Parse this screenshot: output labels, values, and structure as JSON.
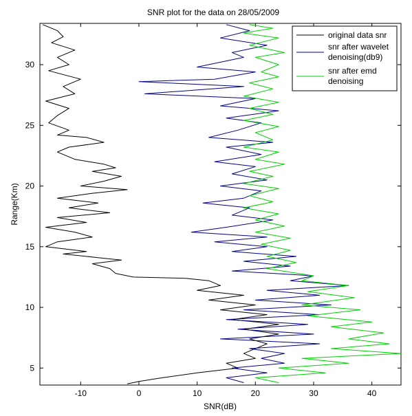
{
  "chart_data": {
    "type": "line",
    "title": "SNR plot for the data on 28/05/2009",
    "xlabel": "SNR(dB)",
    "ylabel": "Range(Km)",
    "xlim": [
      -17,
      45
    ],
    "ylim": [
      3.6,
      33.4
    ],
    "xticks": [
      -10,
      0,
      10,
      20,
      30,
      40
    ],
    "yticks": [
      5,
      10,
      15,
      20,
      25,
      30
    ],
    "grid": false,
    "legend_position": "top-right",
    "series": [
      {
        "name": "original data snr",
        "color": "#000000",
        "points": [
          [
            -16.5,
            33.3
          ],
          [
            -14,
            32.8
          ],
          [
            -13,
            32.3
          ],
          [
            -15,
            31.8
          ],
          [
            -11,
            31.2
          ],
          [
            -14,
            30.6
          ],
          [
            -12,
            30.0
          ],
          [
            -15.5,
            29.5
          ],
          [
            -10,
            28.8
          ],
          [
            -13,
            28.2
          ],
          [
            -11,
            27.6
          ],
          [
            -16,
            27.0
          ],
          [
            -12,
            26.4
          ],
          [
            -14,
            25.8
          ],
          [
            -15.5,
            25.2
          ],
          [
            -12,
            24.6
          ],
          [
            -14,
            24.2
          ],
          [
            -9,
            24.0
          ],
          [
            -6,
            23.6
          ],
          [
            -12,
            23.2
          ],
          [
            -14,
            22.8
          ],
          [
            -11,
            22.2
          ],
          [
            -6,
            21.8
          ],
          [
            -4,
            21.5
          ],
          [
            -8,
            21.2
          ],
          [
            -3,
            20.8
          ],
          [
            -6,
            20.4
          ],
          [
            -10,
            20.0
          ],
          [
            -2,
            19.7
          ],
          [
            -8,
            19.4
          ],
          [
            -14,
            19.0
          ],
          [
            -7,
            18.6
          ],
          [
            -12,
            18.2
          ],
          [
            -5,
            17.8
          ],
          [
            -14,
            17.4
          ],
          [
            -9,
            17.0
          ],
          [
            -16,
            16.6
          ],
          [
            -11,
            16.2
          ],
          [
            -8,
            15.8
          ],
          [
            -14,
            15.4
          ],
          [
            -16,
            15.0
          ],
          [
            -9,
            14.6
          ],
          [
            -13,
            14.4
          ],
          [
            -7,
            14.1
          ],
          [
            -3,
            13.9
          ],
          [
            -8,
            13.6
          ],
          [
            -5,
            13.2
          ],
          [
            -4,
            12.8
          ],
          [
            -1,
            12.5
          ],
          [
            8,
            12.4
          ],
          [
            12,
            12.2
          ],
          [
            14,
            11.8
          ],
          [
            10,
            11.4
          ],
          [
            18,
            11.0
          ],
          [
            12,
            10.6
          ],
          [
            20,
            10.2
          ],
          [
            14,
            9.8
          ],
          [
            22,
            9.4
          ],
          [
            16,
            9.0
          ],
          [
            24,
            8.6
          ],
          [
            18,
            8.2
          ],
          [
            24,
            7.8
          ],
          [
            19,
            7.4
          ],
          [
            22,
            7.0
          ],
          [
            20,
            6.6
          ],
          [
            18,
            6.2
          ],
          [
            20,
            5.8
          ],
          [
            15,
            5.4
          ],
          [
            17,
            5.0
          ],
          [
            10,
            4.6
          ],
          [
            4,
            4.2
          ],
          [
            0,
            3.9
          ],
          [
            -2,
            3.7
          ]
        ]
      },
      {
        "name": "snr after wavelet denoising(db9)",
        "color": "#00008b",
        "points": [
          [
            15,
            33.3
          ],
          [
            19,
            32.8
          ],
          [
            14,
            32.2
          ],
          [
            22,
            31.6
          ],
          [
            16,
            31.0
          ],
          [
            18,
            30.6
          ],
          [
            10,
            29.8
          ],
          [
            20,
            29.4
          ],
          [
            13,
            28.8
          ],
          [
            0,
            28.6
          ],
          [
            18,
            28.2
          ],
          [
            1,
            27.6
          ],
          [
            20,
            27.2
          ],
          [
            14,
            26.6
          ],
          [
            24,
            26.2
          ],
          [
            15,
            25.6
          ],
          [
            21,
            25.2
          ],
          [
            17,
            24.6
          ],
          [
            12,
            24.0
          ],
          [
            23,
            23.6
          ],
          [
            15,
            23.2
          ],
          [
            21,
            22.6
          ],
          [
            13,
            22.0
          ],
          [
            20,
            21.6
          ],
          [
            16,
            21.0
          ],
          [
            22,
            20.5
          ],
          [
            14,
            20.0
          ],
          [
            21,
            19.6
          ],
          [
            18,
            19.0
          ],
          [
            11,
            18.6
          ],
          [
            19,
            18.2
          ],
          [
            16,
            17.6
          ],
          [
            23,
            17.2
          ],
          [
            15,
            16.6
          ],
          [
            9,
            16.2
          ],
          [
            22,
            15.8
          ],
          [
            13,
            15.4
          ],
          [
            22,
            15.0
          ],
          [
            16,
            14.6
          ],
          [
            27,
            14.2
          ],
          [
            18,
            13.8
          ],
          [
            26,
            13.4
          ],
          [
            16,
            13.0
          ],
          [
            30,
            12.6
          ],
          [
            26,
            12.2
          ],
          [
            36,
            11.8
          ],
          [
            22,
            11.4
          ],
          [
            31,
            11.0
          ],
          [
            20,
            10.6
          ],
          [
            33,
            10.2
          ],
          [
            18,
            9.8
          ],
          [
            31,
            9.4
          ],
          [
            15,
            9.0
          ],
          [
            29,
            8.6
          ],
          [
            17,
            8.2
          ],
          [
            30,
            7.8
          ],
          [
            14,
            7.4
          ],
          [
            31,
            7.0
          ],
          [
            19,
            6.6
          ],
          [
            25,
            6.2
          ],
          [
            21,
            5.8
          ],
          [
            25,
            5.4
          ],
          [
            16,
            5.0
          ],
          [
            22,
            4.6
          ],
          [
            15,
            4.2
          ],
          [
            18,
            3.8
          ]
        ]
      },
      {
        "name": "snr after emd denoising",
        "color": "#00d000",
        "points": [
          [
            19,
            33.3
          ],
          [
            23,
            33.0
          ],
          [
            18,
            32.6
          ],
          [
            24,
            32.2
          ],
          [
            19,
            31.6
          ],
          [
            25,
            31.0
          ],
          [
            20,
            30.6
          ],
          [
            24,
            30.0
          ],
          [
            21,
            29.4
          ],
          [
            24,
            29.0
          ],
          [
            19,
            28.5
          ],
          [
            23,
            28.0
          ],
          [
            18,
            27.4
          ],
          [
            24,
            26.9
          ],
          [
            19,
            26.4
          ],
          [
            23,
            25.9
          ],
          [
            18,
            25.4
          ],
          [
            24,
            24.9
          ],
          [
            20,
            24.4
          ],
          [
            23,
            23.8
          ],
          [
            18,
            23.2
          ],
          [
            24,
            22.8
          ],
          [
            20,
            22.2
          ],
          [
            25,
            21.8
          ],
          [
            19,
            21.2
          ],
          [
            23,
            20.8
          ],
          [
            18,
            20.2
          ],
          [
            24,
            19.8
          ],
          [
            19,
            19.2
          ],
          [
            23,
            18.7
          ],
          [
            18,
            18.2
          ],
          [
            24,
            17.7
          ],
          [
            20,
            17.2
          ],
          [
            25,
            16.7
          ],
          [
            20,
            16.2
          ],
          [
            26,
            15.7
          ],
          [
            21,
            15.2
          ],
          [
            26,
            14.7
          ],
          [
            22,
            14.2
          ],
          [
            27,
            13.7
          ],
          [
            22,
            13.2
          ],
          [
            30,
            12.6
          ],
          [
            28,
            12.2
          ],
          [
            36,
            11.8
          ],
          [
            29,
            11.3
          ],
          [
            37,
            10.8
          ],
          [
            28,
            10.2
          ],
          [
            38,
            9.8
          ],
          [
            29,
            9.3
          ],
          [
            40,
            8.8
          ],
          [
            33,
            8.4
          ],
          [
            42,
            7.9
          ],
          [
            36,
            7.4
          ],
          [
            43,
            7.0
          ],
          [
            33,
            6.6
          ],
          [
            45,
            6.2
          ],
          [
            28,
            5.8
          ],
          [
            36,
            5.4
          ],
          [
            24,
            5.0
          ],
          [
            32,
            4.6
          ],
          [
            20,
            4.2
          ],
          [
            24,
            3.8
          ]
        ]
      }
    ]
  }
}
